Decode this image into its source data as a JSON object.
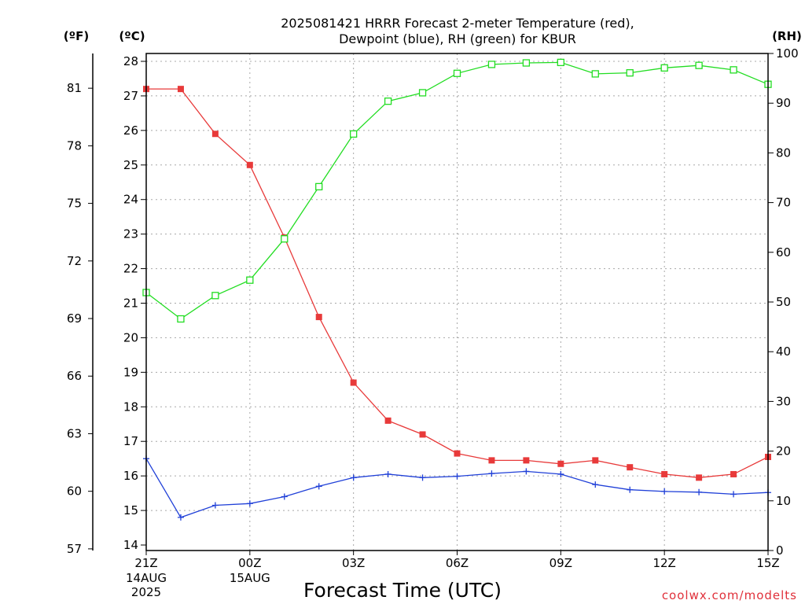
{
  "colors": {
    "temperature": "#e83a3a",
    "dewpoint": "#2040d8",
    "rh": "#22dd22",
    "grid": "#a8a8a8",
    "credit": "#e0303a"
  },
  "chart_data": {
    "type": "line",
    "title_line1": "2025081421 HRRR Forecast 2-meter Temperature (red),",
    "title_line2": "Dewpoint (blue), RH (green) for KBUR",
    "xlabel": "Forecast Time (UTC)",
    "credit": "coolwx.com/modelts",
    "unit_left_outer": "(ºF)",
    "unit_left_inner": "(ºC)",
    "unit_right": "(RH)",
    "x_tick_labels": [
      "21Z",
      "00Z",
      "03Z",
      "06Z",
      "09Z",
      "12Z",
      "15Z"
    ],
    "x_tick_hours": [
      0,
      3,
      6,
      9,
      12,
      15,
      18
    ],
    "date_labels": [
      {
        "hour": 0,
        "lines": [
          "14AUG",
          "2025"
        ]
      },
      {
        "hour": 3,
        "lines": [
          "15AUG"
        ]
      }
    ],
    "x_hours": [
      0,
      1,
      2,
      3,
      4,
      5,
      6,
      7,
      8,
      9,
      10,
      11,
      12,
      13,
      14,
      15,
      16,
      17,
      18
    ],
    "xlim": [
      0,
      18
    ],
    "celsius_axis": {
      "ylim": [
        14,
        28
      ],
      "ticks": [
        14,
        15,
        16,
        17,
        18,
        19,
        20,
        21,
        22,
        23,
        24,
        25,
        26,
        27,
        28
      ]
    },
    "fahrenheit_axis": {
      "ticks": [
        57,
        60,
        63,
        66,
        69,
        72,
        75,
        78,
        81
      ]
    },
    "rh_axis": {
      "ylim": [
        0,
        100
      ],
      "ticks": [
        0,
        10,
        20,
        30,
        40,
        50,
        60,
        70,
        80,
        90,
        100
      ]
    },
    "grid": true,
    "series": [
      {
        "name": "Temperature",
        "axis": "celsius",
        "marker": "filled-square",
        "values": [
          27.2,
          27.2,
          25.9,
          25.0,
          22.9,
          20.6,
          18.7,
          17.6,
          17.2,
          16.65,
          16.45,
          16.45,
          16.35,
          16.45,
          16.25,
          16.05,
          15.95,
          16.05,
          16.55
        ]
      },
      {
        "name": "Dewpoint",
        "axis": "celsius",
        "marker": "plus",
        "values": [
          16.5,
          14.8,
          15.15,
          15.2,
          15.4,
          15.7,
          15.95,
          16.05,
          15.95,
          15.99,
          16.07,
          16.13,
          16.05,
          15.75,
          15.6,
          15.55,
          15.53,
          15.47,
          15.52
        ]
      },
      {
        "name": "RH",
        "axis": "rh",
        "marker": "open-square",
        "values": [
          51.9,
          46.6,
          51.3,
          54.4,
          62.7,
          73.2,
          83.8,
          90.4,
          92.1,
          96.0,
          97.8,
          98.1,
          98.2,
          95.9,
          96.1,
          97.1,
          97.6,
          96.7,
          93.8
        ]
      }
    ]
  }
}
